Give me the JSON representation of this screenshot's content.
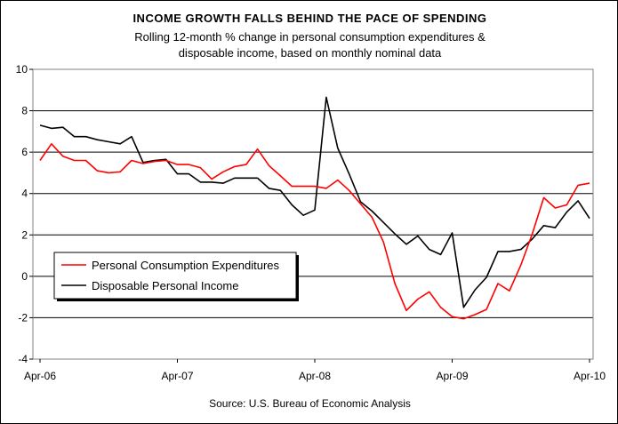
{
  "chart_data": {
    "type": "line",
    "title": "INCOME GROWTH FALLS BEHIND THE PACE OF SPENDING",
    "subtitle_line1": "Rolling 12-month % change in personal consumption expenditures &",
    "subtitle_line2": "disposable income, based on monthly nominal data",
    "source": "Source: U.S. Bureau of Economic Analysis",
    "ylim": [
      -4,
      10
    ],
    "y_ticks": [
      "-4",
      "-2",
      "0",
      "2",
      "4",
      "6",
      "8",
      "10"
    ],
    "x_tick_labels": [
      "Apr-06",
      "Apr-07",
      "Apr-08",
      "Apr-09",
      "Apr-10"
    ],
    "grid": "horizontal",
    "legend_position": "lower-left",
    "series": [
      {
        "name": "Personal Consumption Expenditures",
        "color": "#ff0000",
        "values": [
          5.6,
          6.4,
          5.8,
          5.6,
          5.6,
          5.1,
          5.0,
          5.05,
          5.6,
          5.45,
          5.55,
          5.6,
          5.4,
          5.4,
          5.25,
          4.7,
          5.05,
          5.3,
          5.4,
          6.15,
          5.35,
          4.85,
          4.35,
          4.35,
          4.35,
          4.25,
          4.65,
          4.15,
          3.5,
          2.85,
          1.65,
          -0.35,
          -1.65,
          -1.1,
          -0.75,
          -1.5,
          -1.95,
          -2.05,
          -1.85,
          -1.6,
          -0.35,
          -0.7,
          0.55,
          2.05,
          3.8,
          3.3,
          3.45,
          4.4,
          4.5
        ]
      },
      {
        "name": "Disposable Personal Income",
        "color": "#000000",
        "values": [
          7.3,
          7.15,
          7.2,
          6.75,
          6.75,
          6.6,
          6.5,
          6.4,
          6.75,
          5.5,
          5.6,
          5.65,
          4.95,
          4.95,
          4.55,
          4.55,
          4.5,
          4.75,
          4.75,
          4.75,
          4.25,
          4.15,
          3.45,
          2.95,
          3.2,
          8.65,
          6.2,
          4.95,
          3.6,
          3.15,
          2.6,
          2.05,
          1.55,
          1.95,
          1.3,
          1.05,
          2.1,
          -1.5,
          -0.65,
          -0.05,
          1.2,
          1.2,
          1.3,
          1.8,
          2.45,
          2.35,
          3.1,
          3.65,
          2.8
        ]
      }
    ]
  }
}
